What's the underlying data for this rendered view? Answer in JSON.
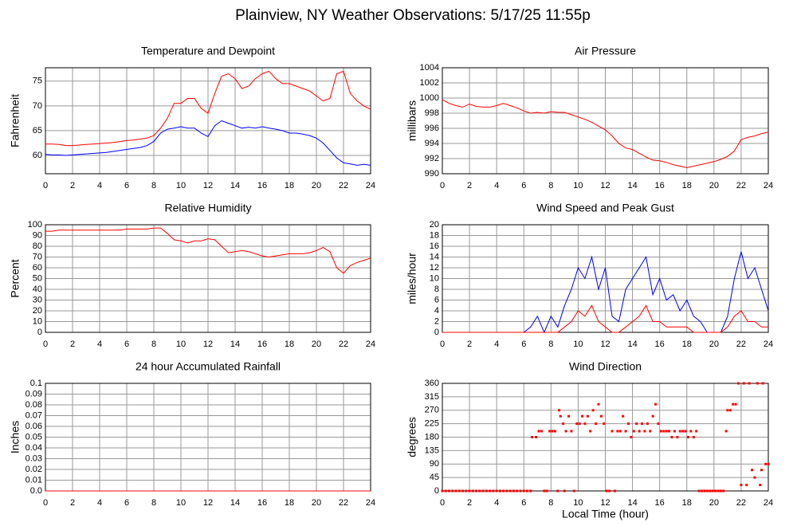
{
  "title": "Plainview, NY Weather Observations: 5/17/25 11:55p",
  "chart_data": [
    {
      "type": "line",
      "title": "Temperature and Dewpoint",
      "ylabel": "Fahrenheit",
      "grid": true,
      "x": [
        0,
        0.5,
        1,
        1.5,
        2,
        2.5,
        3,
        3.5,
        4,
        4.5,
        5,
        5.5,
        6,
        6.5,
        7,
        7.5,
        8,
        8.5,
        9,
        9.5,
        10,
        10.5,
        11,
        11.5,
        12,
        12.5,
        13,
        13.5,
        14,
        14.5,
        15,
        15.5,
        16,
        16.5,
        17,
        17.5,
        18,
        18.5,
        19,
        19.5,
        20,
        20.5,
        21,
        21.5,
        22,
        22.5,
        23,
        23.5,
        24
      ],
      "xlim": [
        0,
        24
      ],
      "xticks": [
        0,
        2,
        4,
        6,
        8,
        10,
        12,
        14,
        16,
        18,
        20,
        22,
        24
      ],
      "ylim": [
        56.3,
        77.7
      ],
      "yticks": [
        60,
        65,
        70,
        75
      ],
      "series": [
        {
          "color": "#ff0000",
          "values": [
            62.3,
            62.3,
            62.2,
            62.0,
            62.0,
            62.1,
            62.2,
            62.3,
            62.4,
            62.5,
            62.6,
            62.8,
            63.0,
            63.1,
            63.3,
            63.5,
            64.0,
            65.5,
            67.5,
            70.5,
            70.5,
            71.5,
            71.5,
            69.5,
            68.5,
            72.5,
            76.0,
            76.5,
            75.5,
            73.5,
            74.0,
            75.5,
            76.5,
            77.0,
            75.5,
            74.5,
            74.5,
            74.0,
            73.5,
            73.0,
            72.0,
            71.0,
            71.5,
            76.5,
            77.0,
            72.5,
            71.0,
            70.0,
            69.3
          ]
        },
        {
          "color": "#0000ff",
          "values": [
            60.2,
            60.1,
            60.1,
            60.0,
            60.1,
            60.2,
            60.3,
            60.4,
            60.5,
            60.6,
            60.8,
            61.0,
            61.2,
            61.4,
            61.6,
            62.0,
            62.8,
            64.5,
            65.3,
            65.5,
            65.8,
            65.5,
            65.5,
            64.5,
            63.8,
            66.0,
            67.0,
            66.5,
            66.0,
            65.5,
            65.7,
            65.5,
            65.8,
            65.5,
            65.3,
            65.0,
            64.5,
            64.5,
            64.3,
            64.0,
            63.5,
            62.5,
            61.0,
            59.5,
            58.5,
            58.3,
            58.0,
            58.2,
            58.0
          ]
        }
      ]
    },
    {
      "type": "line",
      "title": "Air Pressure",
      "ylabel": "millibars",
      "grid": true,
      "x": [
        0,
        0.5,
        1,
        1.5,
        2,
        2.5,
        3,
        3.5,
        4,
        4.5,
        5,
        5.5,
        6,
        6.5,
        7,
        7.5,
        8,
        8.5,
        9,
        9.5,
        10,
        10.5,
        11,
        11.5,
        12,
        12.5,
        13,
        13.5,
        14,
        14.5,
        15,
        15.5,
        16,
        16.5,
        17,
        17.5,
        18,
        18.5,
        19,
        19.5,
        20,
        20.5,
        21,
        21.5,
        22,
        22.5,
        23,
        23.5,
        24
      ],
      "xlim": [
        0,
        24
      ],
      "xticks": [
        0,
        2,
        4,
        6,
        8,
        10,
        12,
        14,
        16,
        18,
        20,
        22,
        24
      ],
      "ylim": [
        990,
        1004
      ],
      "yticks": [
        990,
        992,
        994,
        996,
        998,
        1000,
        1002,
        1004
      ],
      "series": [
        {
          "color": "#ff0000",
          "values": [
            999.8,
            999.3,
            999.0,
            998.8,
            999.2,
            998.9,
            998.8,
            998.8,
            999.0,
            999.3,
            999.0,
            998.7,
            998.3,
            998.0,
            998.1,
            998.0,
            998.2,
            998.1,
            998.1,
            997.8,
            997.5,
            997.2,
            996.8,
            996.3,
            995.8,
            995.0,
            994.0,
            993.4,
            993.2,
            992.7,
            992.2,
            991.8,
            991.7,
            991.5,
            991.2,
            991.0,
            990.8,
            991.0,
            991.2,
            991.4,
            991.6,
            991.9,
            992.3,
            993.0,
            994.5,
            994.8,
            995.0,
            995.3,
            995.5
          ]
        }
      ]
    },
    {
      "type": "line",
      "title": "Relative Humidity",
      "ylabel": "Percent",
      "grid": true,
      "x": [
        0,
        0.5,
        1,
        1.5,
        2,
        2.5,
        3,
        3.5,
        4,
        4.5,
        5,
        5.5,
        6,
        6.5,
        7,
        7.5,
        8,
        8.5,
        9,
        9.5,
        10,
        10.5,
        11,
        11.5,
        12,
        12.5,
        13,
        13.5,
        14,
        14.5,
        15,
        15.5,
        16,
        16.5,
        17,
        17.5,
        18,
        18.5,
        19,
        19.5,
        20,
        20.5,
        21,
        21.5,
        22,
        22.5,
        23,
        23.5,
        24
      ],
      "xlim": [
        0,
        24
      ],
      "xticks": [
        0,
        2,
        4,
        6,
        8,
        10,
        12,
        14,
        16,
        18,
        20,
        22,
        24
      ],
      "ylim": [
        0,
        100
      ],
      "yticks": [
        0,
        10,
        20,
        30,
        40,
        50,
        60,
        70,
        80,
        90,
        100
      ],
      "series": [
        {
          "color": "#ff0000",
          "values": [
            94,
            94,
            95,
            95,
            95,
            95,
            95,
            95,
            95,
            95,
            95,
            95,
            96,
            96,
            96,
            96,
            97,
            97,
            92,
            86,
            85,
            83,
            85,
            85,
            87,
            86,
            80,
            74,
            75,
            76,
            75,
            73,
            71,
            70,
            71,
            72,
            73,
            73,
            73,
            74,
            76,
            79,
            75,
            60,
            55,
            62,
            65,
            67,
            69
          ]
        }
      ]
    },
    {
      "type": "line",
      "title": "Wind Speed and Peak Gust",
      "ylabel": "miles/hour",
      "grid": true,
      "x": [
        0,
        0.5,
        1,
        1.5,
        2,
        2.5,
        3,
        3.5,
        4,
        4.5,
        5,
        5.5,
        6,
        6.5,
        7,
        7.5,
        8,
        8.5,
        9,
        9.5,
        10,
        10.5,
        11,
        11.5,
        12,
        12.5,
        13,
        13.5,
        14,
        14.5,
        15,
        15.5,
        16,
        16.5,
        17,
        17.5,
        18,
        18.5,
        19,
        19.5,
        20,
        20.5,
        21,
        21.5,
        22,
        22.5,
        23,
        23.5,
        24
      ],
      "xlim": [
        0,
        24
      ],
      "xticks": [
        0,
        2,
        4,
        6,
        8,
        10,
        12,
        14,
        16,
        18,
        20,
        22,
        24
      ],
      "ylim": [
        0,
        20
      ],
      "yticks": [
        0,
        2,
        4,
        6,
        8,
        10,
        12,
        14,
        16,
        18,
        20
      ],
      "series": [
        {
          "color": "#0000ff",
          "values": [
            0,
            0,
            0,
            0,
            0,
            0,
            0,
            0,
            0,
            0,
            0,
            0,
            0,
            1,
            3,
            0,
            3,
            1,
            5,
            8,
            12,
            10,
            14,
            8,
            12,
            3,
            2,
            8,
            10,
            12,
            14,
            7,
            10,
            6,
            7,
            4,
            6,
            3,
            2,
            0,
            0,
            0,
            3,
            10,
            15,
            10,
            12,
            8,
            4
          ]
        },
        {
          "color": "#ff0000",
          "values": [
            0,
            0,
            0,
            0,
            0,
            0,
            0,
            0,
            0,
            0,
            0,
            0,
            0,
            0,
            0,
            0,
            0,
            0,
            1,
            2,
            4,
            3,
            5,
            2,
            1,
            0,
            0,
            1,
            2,
            3,
            5,
            2,
            2,
            1,
            1,
            1,
            1,
            0,
            0,
            0,
            0,
            0,
            1,
            3,
            4,
            2,
            2,
            1,
            1
          ]
        }
      ]
    },
    {
      "type": "line",
      "title": "24 hour Accumulated Rainfall",
      "ylabel": "Inches",
      "grid": true,
      "x": [
        0,
        24
      ],
      "xlim": [
        0,
        24
      ],
      "xticks": [
        0,
        2,
        4,
        6,
        8,
        10,
        12,
        14,
        16,
        18,
        20,
        22,
        24
      ],
      "ylim": [
        0,
        0.1
      ],
      "yticks": [
        {
          "value": 0,
          "label": "0.0"
        },
        0.01,
        0.02,
        0.03,
        0.04,
        0.05,
        0.06,
        0.07,
        0.08,
        0.09,
        0.1
      ],
      "series": [
        {
          "color": "#ff0000",
          "values": [
            0,
            0
          ]
        }
      ]
    },
    {
      "type": "scatter",
      "title": "Wind Direction",
      "ylabel": "degrees",
      "xlabel": "Local Time (hour)",
      "grid": true,
      "color": "#ff0000",
      "xlim": [
        0,
        24
      ],
      "xticks": [
        0,
        2,
        4,
        6,
        8,
        10,
        12,
        14,
        16,
        18,
        20,
        22,
        24
      ],
      "ylim": [
        0,
        360
      ],
      "yticks": [
        0,
        45,
        90,
        135,
        180,
        225,
        270,
        315,
        360
      ],
      "x": [
        0,
        0.25,
        0.5,
        0.75,
        1,
        1.25,
        1.5,
        1.75,
        2,
        2.25,
        2.5,
        2.75,
        3,
        3.25,
        3.5,
        3.75,
        4,
        4.25,
        4.5,
        4.75,
        5,
        5.25,
        5.5,
        5.75,
        6,
        6.25,
        6.5,
        6.6,
        6.9,
        7.1,
        7.3,
        7.5,
        7.7,
        7.9,
        8.1,
        8.3,
        8.5,
        8.6,
        8.7,
        8.9,
        9.0,
        9.1,
        9.3,
        9.5,
        9.7,
        9.9,
        10.1,
        10.3,
        10.5,
        10.7,
        10.9,
        11.1,
        11.3,
        11.5,
        11.7,
        11.9,
        12.1,
        12.3,
        12.5,
        12.7,
        12.9,
        13.1,
        13.3,
        13.5,
        13.7,
        13.9,
        14.1,
        14.3,
        14.5,
        14.7,
        14.9,
        15.1,
        15.3,
        15.5,
        15.7,
        15.9,
        16.1,
        16.3,
        16.5,
        16.7,
        16.9,
        17.1,
        17.3,
        17.5,
        17.7,
        17.9,
        18.1,
        18.3,
        18.5,
        18.7,
        18.9,
        19.1,
        19.3,
        19.5,
        19.7,
        19.9,
        20.1,
        20.3,
        20.5,
        20.7,
        20.9,
        21.0,
        21.2,
        21.4,
        21.6,
        21.8,
        22.0,
        22.2,
        22.4,
        22.6,
        22.8,
        23.0,
        23.2,
        23.4,
        23.5,
        23.6,
        23.8,
        24
      ],
      "values": [
        0,
        0,
        0,
        0,
        0,
        0,
        0,
        0,
        0,
        0,
        0,
        0,
        0,
        0,
        0,
        0,
        0,
        0,
        0,
        0,
        0,
        0,
        0,
        0,
        0,
        0,
        0,
        180,
        180,
        200,
        200,
        0,
        0,
        200,
        200,
        200,
        0,
        270,
        250,
        225,
        0,
        200,
        250,
        200,
        0,
        225,
        225,
        250,
        225,
        250,
        200,
        270,
        225,
        290,
        250,
        225,
        0,
        0,
        200,
        0,
        200,
        200,
        250,
        200,
        225,
        180,
        200,
        225,
        200,
        225,
        200,
        225,
        200,
        250,
        290,
        225,
        200,
        200,
        200,
        200,
        180,
        200,
        180,
        200,
        200,
        200,
        180,
        200,
        180,
        200,
        0,
        0,
        0,
        0,
        0,
        0,
        0,
        0,
        0,
        0,
        200,
        270,
        270,
        290,
        290,
        360,
        20,
        360,
        20,
        360,
        70,
        45,
        360,
        20,
        70,
        360,
        90,
        90
      ]
    }
  ]
}
